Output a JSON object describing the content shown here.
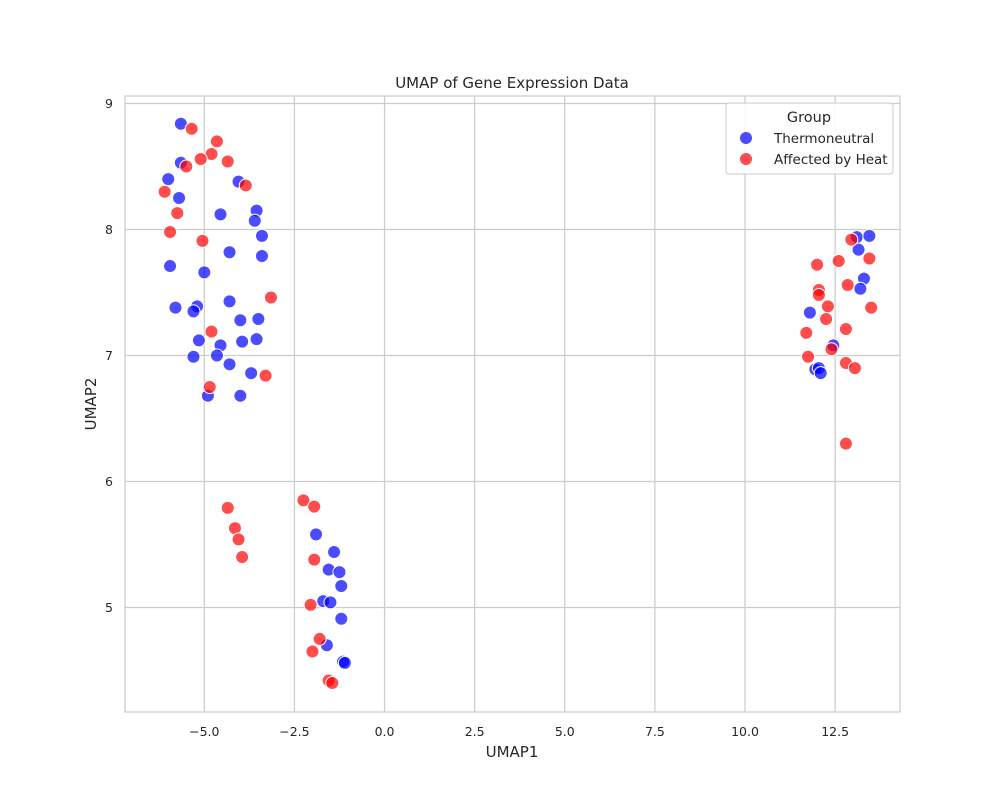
{
  "chart_data": {
    "type": "scatter",
    "title": "UMAP of Gene Expression Data",
    "xlabel": "UMAP1",
    "ylabel": "UMAP2",
    "xlim": [
      -7.2,
      14.3
    ],
    "ylim": [
      4.17,
      9.06
    ],
    "xticks": [
      -5.0,
      -2.5,
      0.0,
      2.5,
      5.0,
      7.5,
      10.0,
      12.5
    ],
    "xtick_labels": [
      "−5.0",
      "−2.5",
      "0.0",
      "2.5",
      "5.0",
      "7.5",
      "10.0",
      "12.5"
    ],
    "yticks": [
      5,
      6,
      7,
      8,
      9
    ],
    "ytick_labels": [
      "5",
      "6",
      "7",
      "8",
      "9"
    ],
    "grid": true,
    "legend": {
      "title": "Group",
      "placement": "top-right"
    },
    "series": [
      {
        "name": "Thermoneutral",
        "color": "#0000FF",
        "points": [
          [
            -5.65,
            8.84
          ],
          [
            -5.65,
            8.53
          ],
          [
            -6.0,
            8.4
          ],
          [
            -5.7,
            8.25
          ],
          [
            -4.05,
            8.38
          ],
          [
            -4.55,
            8.12
          ],
          [
            -3.55,
            8.15
          ],
          [
            -3.6,
            8.07
          ],
          [
            -3.4,
            7.95
          ],
          [
            -4.3,
            7.82
          ],
          [
            -3.4,
            7.79
          ],
          [
            -5.95,
            7.71
          ],
          [
            -5.0,
            7.66
          ],
          [
            -4.3,
            7.43
          ],
          [
            -5.8,
            7.38
          ],
          [
            -5.2,
            7.39
          ],
          [
            -5.3,
            7.35
          ],
          [
            -4.0,
            7.28
          ],
          [
            -3.5,
            7.29
          ],
          [
            -5.15,
            7.12
          ],
          [
            -3.95,
            7.11
          ],
          [
            -3.55,
            7.13
          ],
          [
            -4.55,
            7.08
          ],
          [
            -4.65,
            7.0
          ],
          [
            -5.3,
            6.99
          ],
          [
            -4.3,
            6.93
          ],
          [
            -3.7,
            6.86
          ],
          [
            -4.9,
            6.68
          ],
          [
            -4.0,
            6.68
          ],
          [
            -1.9,
            5.58
          ],
          [
            -1.4,
            5.44
          ],
          [
            -1.55,
            5.3
          ],
          [
            -1.25,
            5.28
          ],
          [
            -1.2,
            5.17
          ],
          [
            -1.7,
            5.05
          ],
          [
            -1.5,
            5.04
          ],
          [
            -1.2,
            4.91
          ],
          [
            -1.6,
            4.7
          ],
          [
            -1.15,
            4.57
          ],
          [
            -1.1,
            4.56
          ],
          [
            13.1,
            7.94
          ],
          [
            13.45,
            7.95
          ],
          [
            13.15,
            7.84
          ],
          [
            13.3,
            7.61
          ],
          [
            13.2,
            7.53
          ],
          [
            11.8,
            7.34
          ],
          [
            12.45,
            7.08
          ],
          [
            11.95,
            6.89
          ],
          [
            12.05,
            6.9
          ],
          [
            12.1,
            6.86
          ]
        ]
      },
      {
        "name": "Affected by Heat",
        "color": "#FF0000",
        "points": [
          [
            -5.35,
            8.8
          ],
          [
            -4.65,
            8.7
          ],
          [
            -4.8,
            8.6
          ],
          [
            -5.1,
            8.56
          ],
          [
            -4.35,
            8.54
          ],
          [
            -5.5,
            8.5
          ],
          [
            -3.85,
            8.35
          ],
          [
            -6.1,
            8.3
          ],
          [
            -5.75,
            8.13
          ],
          [
            -5.95,
            7.98
          ],
          [
            -5.05,
            7.91
          ],
          [
            -3.15,
            7.46
          ],
          [
            -4.8,
            7.19
          ],
          [
            -3.3,
            6.84
          ],
          [
            -4.85,
            6.75
          ],
          [
            -2.25,
            5.85
          ],
          [
            -1.95,
            5.8
          ],
          [
            -4.35,
            5.79
          ],
          [
            -4.15,
            5.63
          ],
          [
            -4.05,
            5.54
          ],
          [
            -3.95,
            5.4
          ],
          [
            -1.95,
            5.38
          ],
          [
            -2.05,
            5.02
          ],
          [
            -1.8,
            4.75
          ],
          [
            -2.0,
            4.65
          ],
          [
            -1.55,
            4.42
          ],
          [
            -1.45,
            4.4
          ],
          [
            12.95,
            7.92
          ],
          [
            12.6,
            7.75
          ],
          [
            13.45,
            7.77
          ],
          [
            12.0,
            7.72
          ],
          [
            12.85,
            7.56
          ],
          [
            12.05,
            7.52
          ],
          [
            12.05,
            7.48
          ],
          [
            12.3,
            7.39
          ],
          [
            13.5,
            7.38
          ],
          [
            12.25,
            7.29
          ],
          [
            11.7,
            7.18
          ],
          [
            12.8,
            7.21
          ],
          [
            12.4,
            7.05
          ],
          [
            11.75,
            6.99
          ],
          [
            12.8,
            6.94
          ],
          [
            13.05,
            6.9
          ],
          [
            12.8,
            6.3
          ]
        ]
      }
    ]
  }
}
